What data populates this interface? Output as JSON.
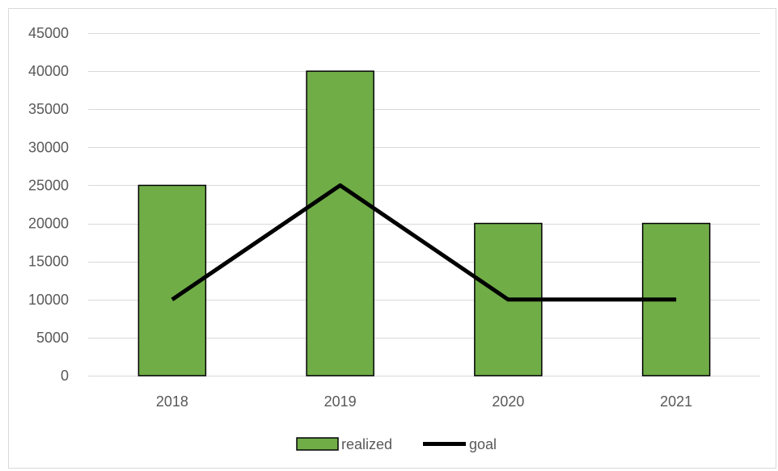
{
  "chart_data": {
    "type": "bar",
    "categories": [
      "2018",
      "2019",
      "2020",
      "2021"
    ],
    "series": [
      {
        "name": "realized",
        "type": "bar",
        "values": [
          25000,
          40000,
          20000,
          20000
        ],
        "color": "#70ad47",
        "stroke": "#000000"
      },
      {
        "name": "goal",
        "type": "line",
        "values": [
          10000,
          25000,
          10000,
          10000
        ],
        "color": "#000000"
      }
    ],
    "title": "",
    "xlabel": "",
    "ylabel": "",
    "ylim": [
      0,
      45000
    ],
    "yticks": [
      0,
      5000,
      10000,
      15000,
      20000,
      25000,
      30000,
      35000,
      40000,
      45000
    ],
    "grid": true,
    "gridColor": "#d9d9d9",
    "axisColor": "#d9d9d9",
    "legend": {
      "placement": "bottom",
      "entries": [
        "realized",
        "goal"
      ]
    }
  }
}
